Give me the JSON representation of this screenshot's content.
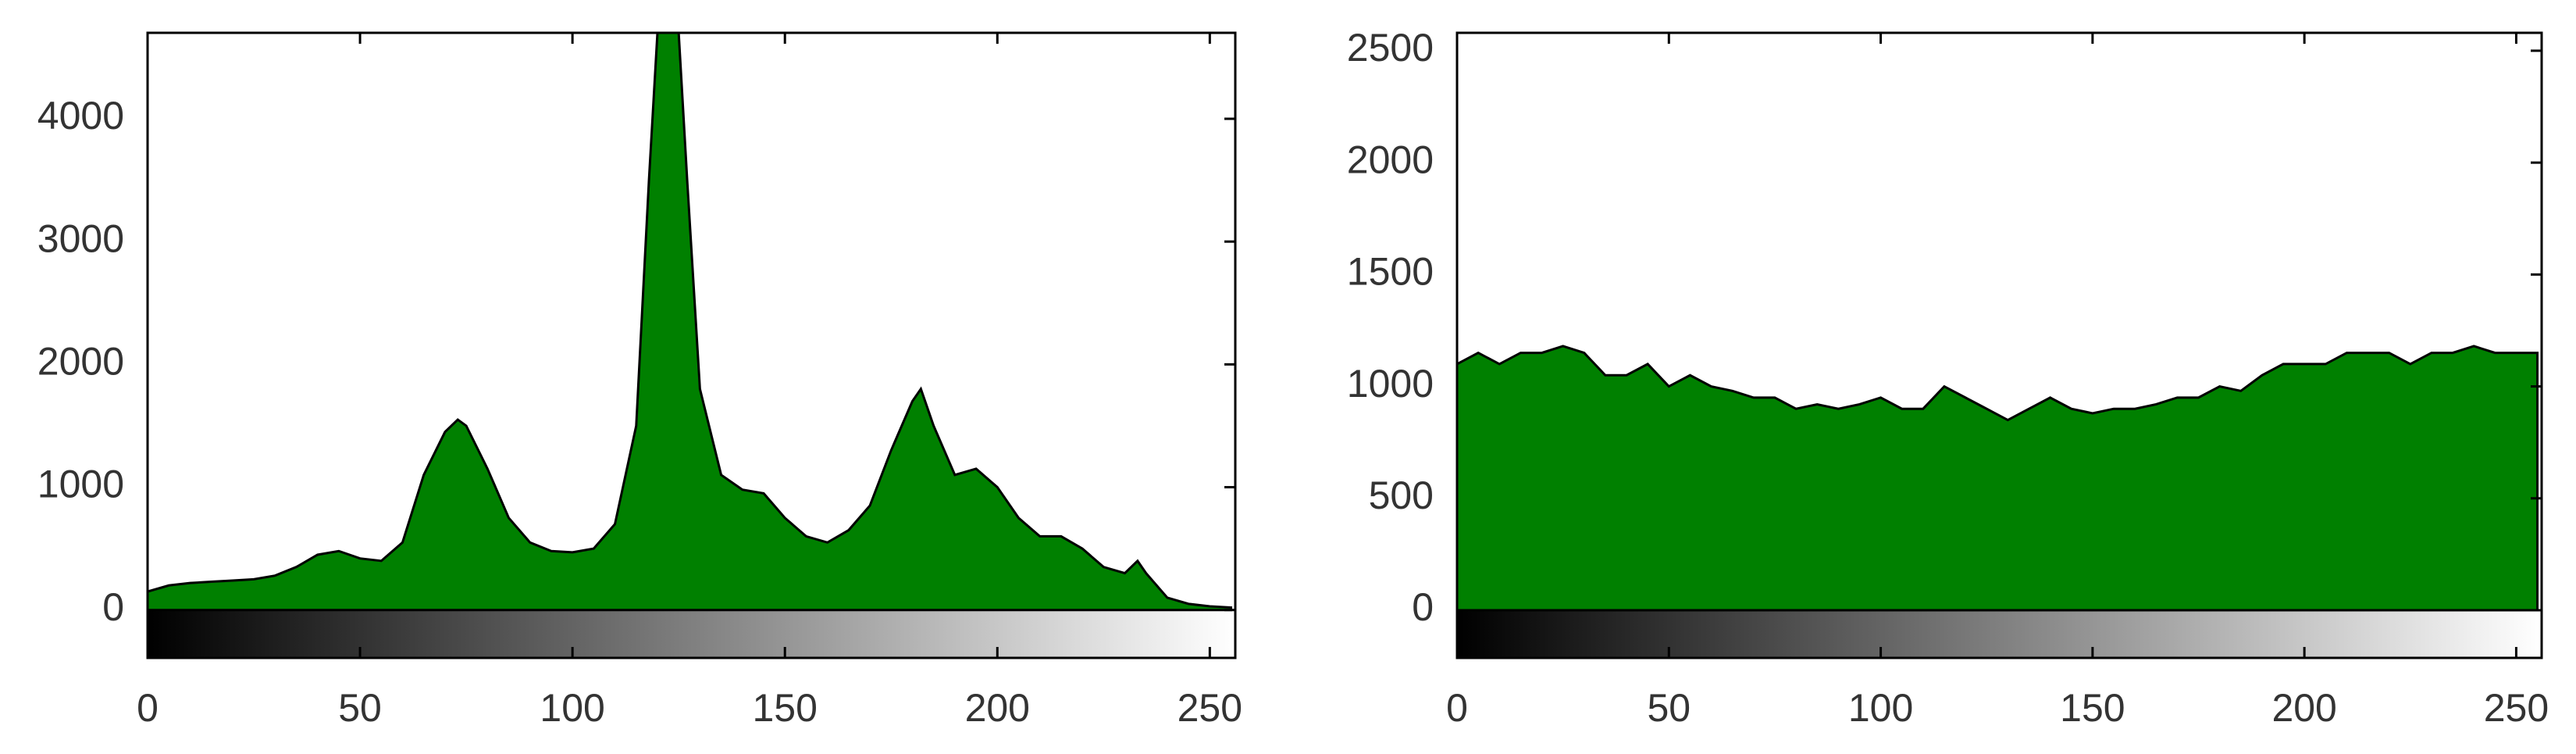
{
  "chart_data": [
    {
      "type": "area",
      "color": "#008000",
      "x": [
        0,
        5,
        10,
        15,
        20,
        25,
        30,
        35,
        40,
        45,
        50,
        55,
        60,
        65,
        70,
        73,
        75,
        80,
        85,
        90,
        95,
        100,
        105,
        110,
        115,
        118,
        120,
        125,
        127,
        130,
        135,
        140,
        145,
        150,
        155,
        160,
        165,
        170,
        175,
        180,
        182,
        185,
        190,
        195,
        200,
        205,
        210,
        215,
        220,
        225,
        230,
        233,
        235,
        240,
        245,
        250,
        255
      ],
      "values": [
        150,
        200,
        220,
        230,
        240,
        250,
        280,
        350,
        450,
        480,
        420,
        400,
        550,
        1100,
        1450,
        1550,
        1500,
        1150,
        750,
        550,
        480,
        470,
        500,
        700,
        1500,
        3500,
        4700,
        4700,
        3500,
        1800,
        1100,
        980,
        950,
        750,
        600,
        550,
        650,
        850,
        1300,
        1700,
        1800,
        1500,
        1100,
        1150,
        1000,
        750,
        600,
        600,
        500,
        350,
        300,
        400,
        300,
        100,
        50,
        30,
        20
      ],
      "xlim": [
        0,
        256
      ],
      "ylim": [
        -390,
        4700
      ],
      "xticks": [
        0,
        50,
        100,
        150,
        200,
        250
      ],
      "yticks": [
        0,
        1000,
        2000,
        3000,
        4000
      ]
    },
    {
      "type": "area",
      "color": "#008000",
      "x": [
        0,
        5,
        10,
        15,
        20,
        25,
        30,
        35,
        40,
        45,
        50,
        55,
        60,
        65,
        70,
        75,
        80,
        85,
        90,
        95,
        100,
        105,
        110,
        115,
        120,
        125,
        130,
        135,
        140,
        145,
        150,
        155,
        160,
        165,
        170,
        175,
        180,
        185,
        190,
        195,
        200,
        205,
        210,
        215,
        220,
        225,
        230,
        235,
        240,
        245,
        250,
        255
      ],
      "values": [
        1100,
        1150,
        1100,
        1150,
        1150,
        1180,
        1150,
        1050,
        1050,
        1100,
        1000,
        1050,
        1000,
        980,
        950,
        950,
        900,
        920,
        900,
        920,
        950,
        900,
        900,
        1000,
        950,
        900,
        850,
        900,
        950,
        900,
        880,
        900,
        900,
        920,
        950,
        950,
        1000,
        980,
        1050,
        1100,
        1100,
        1100,
        1150,
        1150,
        1150,
        1100,
        1150,
        1150,
        1180,
        1150,
        1150,
        1150
      ],
      "xlim": [
        0,
        256
      ],
      "ylim": [
        -213,
        2580
      ],
      "xticks": [
        0,
        50,
        100,
        150,
        200,
        250
      ],
      "yticks": [
        0,
        500,
        1000,
        1500,
        2000,
        2500
      ]
    }
  ]
}
